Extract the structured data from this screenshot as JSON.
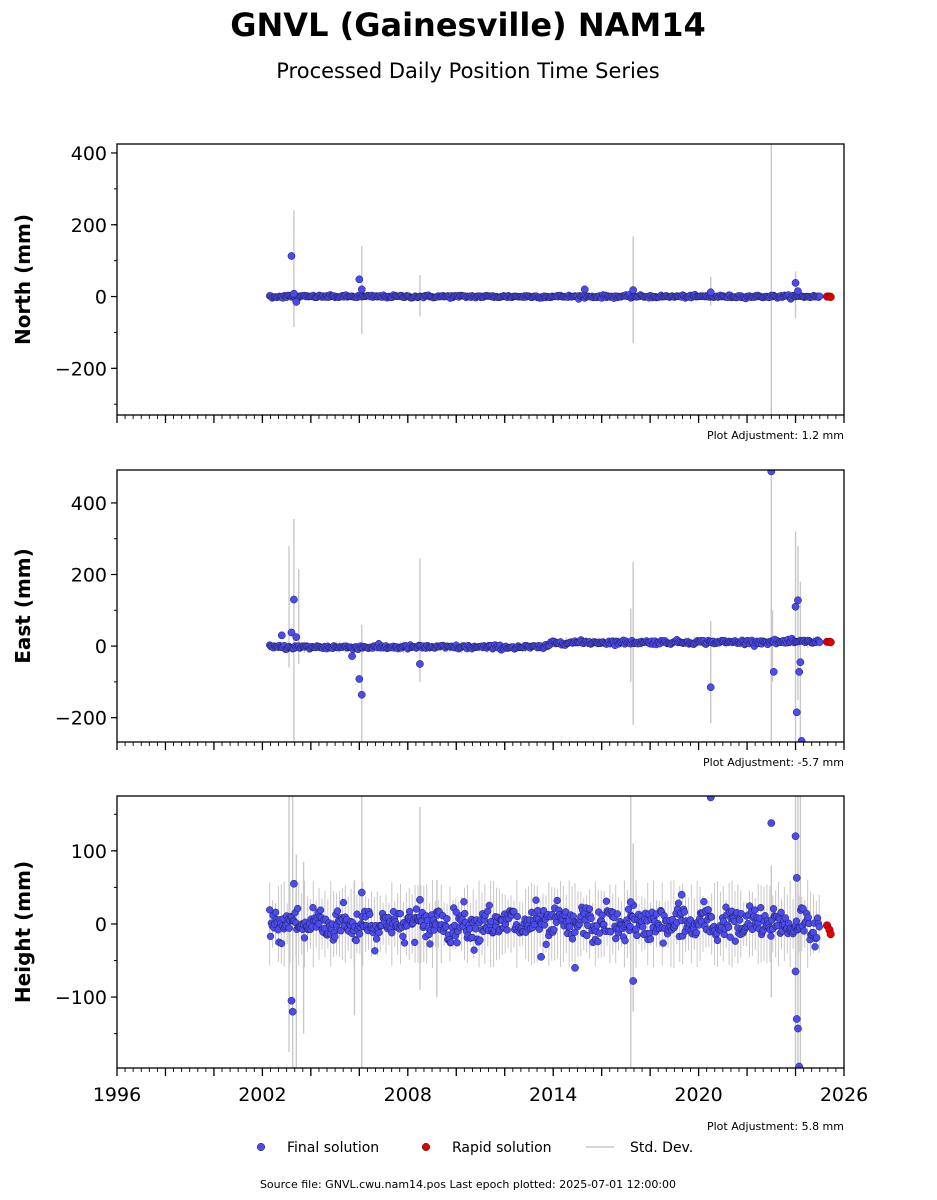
{
  "title": "GNVL (Gainesville) NAM14",
  "subtitle": "Processed Daily Position Time Series",
  "footer": "Source file: GNVL.cwu.nam14.pos  Last epoch plotted: 2025-07-01 12:00:00",
  "colors": {
    "final": "#4b4bf0",
    "rapid": "#e00000",
    "stddev": "#c8c8c8",
    "edge": "#1a1a4a"
  },
  "legend": [
    {
      "label": "Final solution",
      "marker": "dot",
      "color": "#4b4bf0"
    },
    {
      "label": "Rapid solution",
      "marker": "dot",
      "color": "#e00000"
    },
    {
      "label": "Std. Dev.",
      "marker": "line",
      "color": "#c8c8c8"
    }
  ],
  "chart_data": [
    {
      "type": "scatter",
      "ylabel": "North (mm)",
      "adjustment": "Plot Adjustment: 1.2 mm",
      "xlim": [
        1996,
        2026
      ],
      "ylim": [
        -330,
        425
      ],
      "yticks": [
        "400",
        "200",
        "0",
        "−200"
      ],
      "ytick_values": [
        400,
        200,
        0,
        -200
      ],
      "data_start": 2002.3,
      "final_end": 2025.0,
      "baseline": [
        [
          2002.3,
          0
        ],
        [
          2025.0,
          0
        ]
      ],
      "scatter_sd": 2,
      "outliers": [
        [
          2003.2,
          113
        ],
        [
          2003.3,
          8
        ],
        [
          2006.0,
          48
        ],
        [
          2006.1,
          20
        ],
        [
          2015.3,
          20
        ],
        [
          2017.3,
          18
        ],
        [
          2020.5,
          12
        ],
        [
          2024.0,
          38
        ],
        [
          2024.1,
          15
        ],
        [
          2003.4,
          -15
        ]
      ],
      "stddev_lines": [
        [
          2003.3,
          -85,
          240
        ],
        [
          2006.1,
          -105,
          140
        ],
        [
          2008.5,
          -55,
          60
        ],
        [
          2017.3,
          -130,
          168
        ],
        [
          2020.5,
          -25,
          55
        ],
        [
          2023.0,
          -330,
          425
        ],
        [
          2024.0,
          -60,
          70
        ]
      ],
      "rapid": [
        [
          2025.3,
          0
        ],
        [
          2025.4,
          0
        ],
        [
          2025.45,
          -1
        ]
      ]
    },
    {
      "type": "scatter",
      "ylabel": "East (mm)",
      "adjustment": "Plot Adjustment: -5.7 mm",
      "xlim": [
        1996,
        2026
      ],
      "ylim": [
        -268,
        492
      ],
      "yticks": [
        "400",
        "200",
        "0",
        "−200"
      ],
      "ytick_values": [
        400,
        200,
        0,
        -200
      ],
      "data_start": 2002.3,
      "final_end": 2025.0,
      "baseline": [
        [
          2002.3,
          -3
        ],
        [
          2013.8,
          -3
        ],
        [
          2013.9,
          10
        ],
        [
          2025.0,
          12
        ]
      ],
      "scatter_sd": 3,
      "outliers": [
        [
          2003.3,
          130
        ],
        [
          2002.8,
          30
        ],
        [
          2003.2,
          38
        ],
        [
          2003.4,
          25
        ],
        [
          2005.7,
          -28
        ],
        [
          2006.0,
          -92
        ],
        [
          2006.1,
          -136
        ],
        [
          2008.5,
          -50
        ],
        [
          2020.5,
          -115
        ],
        [
          2023.0,
          488
        ],
        [
          2023.1,
          -72
        ],
        [
          2024.0,
          110
        ],
        [
          2024.1,
          128
        ],
        [
          2024.05,
          -185
        ],
        [
          2024.15,
          -72
        ],
        [
          2024.2,
          -45
        ],
        [
          2024.25,
          -265
        ]
      ],
      "stddev_lines": [
        [
          2003.1,
          -60,
          280
        ],
        [
          2003.3,
          -268,
          355
        ],
        [
          2003.5,
          -50,
          215
        ],
        [
          2006.1,
          -268,
          60
        ],
        [
          2008.5,
          -100,
          245
        ],
        [
          2017.3,
          -220,
          235
        ],
        [
          2017.2,
          -100,
          105
        ],
        [
          2020.5,
          -215,
          70
        ],
        [
          2023.0,
          -268,
          492
        ],
        [
          2023.05,
          -100,
          100
        ],
        [
          2024.0,
          -268,
          320
        ],
        [
          2024.1,
          -150,
          280
        ],
        [
          2024.2,
          -268,
          180
        ]
      ],
      "rapid": [
        [
          2025.3,
          12
        ],
        [
          2025.4,
          12
        ],
        [
          2025.45,
          11
        ]
      ]
    },
    {
      "type": "scatter",
      "ylabel": "Height (mm)",
      "adjustment": "Plot Adjustment: 5.8 mm",
      "xlim": [
        1996,
        2026
      ],
      "ylim": [
        -197,
        175
      ],
      "yticks": [
        "100",
        "0",
        "−100"
      ],
      "ytick_values": [
        100,
        0,
        -100
      ],
      "xticks": [
        "1996",
        "2002",
        "2008",
        "2014",
        "2020",
        "2026"
      ],
      "xtick_values": [
        1996,
        2002,
        2008,
        2014,
        2020,
        2026
      ],
      "data_start": 2002.3,
      "final_end": 2025.0,
      "baseline": [
        [
          2002.3,
          0
        ],
        [
          2025.0,
          0
        ]
      ],
      "scatter_sd": 11,
      "outliers": [
        [
          2003.2,
          -105
        ],
        [
          2003.25,
          -120
        ],
        [
          2003.3,
          55
        ],
        [
          2006.1,
          43
        ],
        [
          2008.5,
          33
        ],
        [
          2013.5,
          -45
        ],
        [
          2014.9,
          -60
        ],
        [
          2017.2,
          30
        ],
        [
          2017.3,
          -78
        ],
        [
          2019.3,
          40
        ],
        [
          2020.5,
          173
        ],
        [
          2023.0,
          138
        ],
        [
          2024.0,
          120
        ],
        [
          2024.05,
          63
        ],
        [
          2024.0,
          -65
        ],
        [
          2024.05,
          -130
        ],
        [
          2024.1,
          -143
        ],
        [
          2024.15,
          -195
        ]
      ],
      "stddev_lines": [
        [
          2003.1,
          -175,
          175
        ],
        [
          2003.25,
          -197,
          175
        ],
        [
          2003.4,
          -197,
          95
        ],
        [
          2003.7,
          -150,
          85
        ],
        [
          2006.1,
          -197,
          175
        ],
        [
          2005.8,
          -125,
          60
        ],
        [
          2008.5,
          -90,
          160
        ],
        [
          2009.2,
          -100,
          60
        ],
        [
          2017.2,
          -197,
          175
        ],
        [
          2017.3,
          -120,
          110
        ],
        [
          2023.0,
          -100,
          80
        ],
        [
          2024.0,
          -197,
          175
        ],
        [
          2024.1,
          -197,
          175
        ],
        [
          2024.2,
          -197,
          175
        ]
      ],
      "rapid": [
        [
          2025.3,
          -2
        ],
        [
          2025.4,
          -8
        ],
        [
          2025.45,
          -14
        ]
      ]
    }
  ]
}
